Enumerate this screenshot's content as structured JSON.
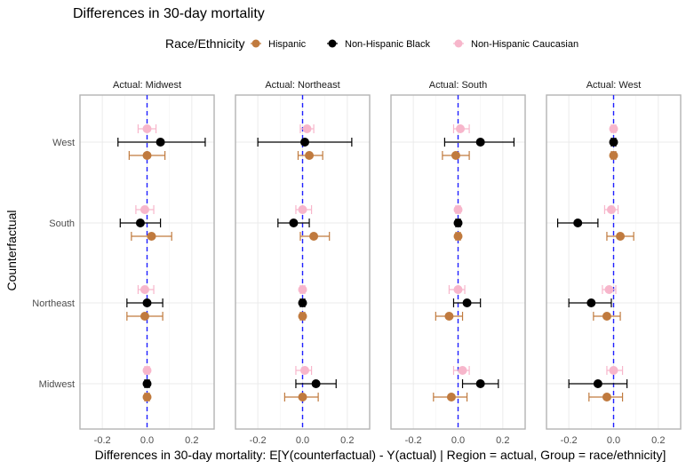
{
  "chart_data": {
    "type": "scatter",
    "title": "Differences in 30-day mortality",
    "xlabel": "Differences in 30-day mortality: E[Y(counterfactual) - Y(actual) | Region = actual, Group = race/ethnicity]",
    "ylabel": "Counterfactual",
    "legend_title": "Race/Ethnicity",
    "legend_position": "top",
    "xlim": [
      -0.3,
      0.3
    ],
    "x_ticks": [
      -0.2,
      0.0,
      0.2
    ],
    "x_tick_labels": [
      "-0.2",
      "0.0",
      "0.2"
    ],
    "reference_line": 0,
    "y_categories": [
      "West",
      "South",
      "Northeast",
      "Midwest"
    ],
    "groups": [
      {
        "name": "Hispanic",
        "color": "#C07A3E"
      },
      {
        "name": "Non-Hispanic Black",
        "color": "#000000"
      },
      {
        "name": "Non-Hispanic Caucasian",
        "color": "#F7B6CB"
      }
    ],
    "panels": [
      {
        "title": "Actual: Midwest",
        "points": [
          {
            "y": "West",
            "group": "Non-Hispanic Caucasian",
            "x": 0.0,
            "lo": -0.04,
            "hi": 0.04
          },
          {
            "y": "West",
            "group": "Non-Hispanic Black",
            "x": 0.06,
            "lo": -0.13,
            "hi": 0.26
          },
          {
            "y": "West",
            "group": "Hispanic",
            "x": 0.0,
            "lo": -0.08,
            "hi": 0.08
          },
          {
            "y": "South",
            "group": "Non-Hispanic Caucasian",
            "x": -0.01,
            "lo": -0.05,
            "hi": 0.03
          },
          {
            "y": "South",
            "group": "Non-Hispanic Black",
            "x": -0.03,
            "lo": -0.12,
            "hi": 0.06
          },
          {
            "y": "South",
            "group": "Hispanic",
            "x": 0.02,
            "lo": -0.07,
            "hi": 0.11
          },
          {
            "y": "Northeast",
            "group": "Non-Hispanic Caucasian",
            "x": -0.01,
            "lo": -0.04,
            "hi": 0.03
          },
          {
            "y": "Northeast",
            "group": "Non-Hispanic Black",
            "x": 0.0,
            "lo": -0.09,
            "hi": 0.07
          },
          {
            "y": "Northeast",
            "group": "Hispanic",
            "x": -0.01,
            "lo": -0.09,
            "hi": 0.07
          },
          {
            "y": "Midwest",
            "group": "Non-Hispanic Caucasian",
            "x": 0.0,
            "lo": -0.01,
            "hi": 0.01
          },
          {
            "y": "Midwest",
            "group": "Non-Hispanic Black",
            "x": 0.0,
            "lo": -0.01,
            "hi": 0.01
          },
          {
            "y": "Midwest",
            "group": "Hispanic",
            "x": 0.0,
            "lo": -0.01,
            "hi": 0.01
          }
        ]
      },
      {
        "title": "Actual: Northeast",
        "points": [
          {
            "y": "West",
            "group": "Non-Hispanic Caucasian",
            "x": 0.02,
            "lo": -0.01,
            "hi": 0.05
          },
          {
            "y": "West",
            "group": "Non-Hispanic Black",
            "x": 0.01,
            "lo": -0.2,
            "hi": 0.22
          },
          {
            "y": "West",
            "group": "Hispanic",
            "x": 0.03,
            "lo": -0.02,
            "hi": 0.09
          },
          {
            "y": "South",
            "group": "Non-Hispanic Caucasian",
            "x": 0.0,
            "lo": -0.03,
            "hi": 0.04
          },
          {
            "y": "South",
            "group": "Non-Hispanic Black",
            "x": -0.04,
            "lo": -0.11,
            "hi": 0.03
          },
          {
            "y": "South",
            "group": "Hispanic",
            "x": 0.05,
            "lo": -0.01,
            "hi": 0.12
          },
          {
            "y": "Northeast",
            "group": "Non-Hispanic Caucasian",
            "x": 0.0,
            "lo": -0.01,
            "hi": 0.01
          },
          {
            "y": "Northeast",
            "group": "Non-Hispanic Black",
            "x": 0.0,
            "lo": -0.01,
            "hi": 0.01
          },
          {
            "y": "Northeast",
            "group": "Hispanic",
            "x": 0.0,
            "lo": -0.01,
            "hi": 0.01
          },
          {
            "y": "Midwest",
            "group": "Non-Hispanic Caucasian",
            "x": 0.01,
            "lo": -0.03,
            "hi": 0.04
          },
          {
            "y": "Midwest",
            "group": "Non-Hispanic Black",
            "x": 0.06,
            "lo": -0.03,
            "hi": 0.15
          },
          {
            "y": "Midwest",
            "group": "Hispanic",
            "x": 0.0,
            "lo": -0.08,
            "hi": 0.07
          }
        ]
      },
      {
        "title": "Actual: South",
        "points": [
          {
            "y": "West",
            "group": "Non-Hispanic Caucasian",
            "x": 0.01,
            "lo": -0.02,
            "hi": 0.05
          },
          {
            "y": "West",
            "group": "Non-Hispanic Black",
            "x": 0.1,
            "lo": -0.06,
            "hi": 0.25
          },
          {
            "y": "West",
            "group": "Hispanic",
            "x": -0.01,
            "lo": -0.07,
            "hi": 0.05
          },
          {
            "y": "South",
            "group": "Non-Hispanic Caucasian",
            "x": 0.0,
            "lo": -0.01,
            "hi": 0.01
          },
          {
            "y": "South",
            "group": "Non-Hispanic Black",
            "x": 0.0,
            "lo": -0.01,
            "hi": 0.01
          },
          {
            "y": "South",
            "group": "Hispanic",
            "x": 0.0,
            "lo": -0.01,
            "hi": 0.01
          },
          {
            "y": "Northeast",
            "group": "Non-Hispanic Caucasian",
            "x": 0.0,
            "lo": -0.04,
            "hi": 0.03
          },
          {
            "y": "Northeast",
            "group": "Non-Hispanic Black",
            "x": 0.04,
            "lo": -0.02,
            "hi": 0.1
          },
          {
            "y": "Northeast",
            "group": "Hispanic",
            "x": -0.04,
            "lo": -0.1,
            "hi": 0.02
          },
          {
            "y": "Midwest",
            "group": "Non-Hispanic Caucasian",
            "x": 0.02,
            "lo": -0.02,
            "hi": 0.05
          },
          {
            "y": "Midwest",
            "group": "Non-Hispanic Black",
            "x": 0.1,
            "lo": 0.02,
            "hi": 0.18
          },
          {
            "y": "Midwest",
            "group": "Hispanic",
            "x": -0.03,
            "lo": -0.11,
            "hi": 0.04
          }
        ]
      },
      {
        "title": "Actual: West",
        "points": [
          {
            "y": "West",
            "group": "Non-Hispanic Caucasian",
            "x": 0.0,
            "lo": -0.01,
            "hi": 0.01
          },
          {
            "y": "West",
            "group": "Non-Hispanic Black",
            "x": 0.0,
            "lo": -0.01,
            "hi": 0.01
          },
          {
            "y": "West",
            "group": "Hispanic",
            "x": 0.0,
            "lo": -0.01,
            "hi": 0.01
          },
          {
            "y": "South",
            "group": "Non-Hispanic Caucasian",
            "x": -0.01,
            "lo": -0.04,
            "hi": 0.02
          },
          {
            "y": "South",
            "group": "Non-Hispanic Black",
            "x": -0.16,
            "lo": -0.25,
            "hi": -0.07
          },
          {
            "y": "South",
            "group": "Hispanic",
            "x": 0.03,
            "lo": -0.03,
            "hi": 0.09
          },
          {
            "y": "Northeast",
            "group": "Non-Hispanic Caucasian",
            "x": -0.02,
            "lo": -0.05,
            "hi": 0.01
          },
          {
            "y": "Northeast",
            "group": "Non-Hispanic Black",
            "x": -0.1,
            "lo": -0.2,
            "hi": -0.01
          },
          {
            "y": "Northeast",
            "group": "Hispanic",
            "x": -0.03,
            "lo": -0.09,
            "hi": 0.03
          },
          {
            "y": "Midwest",
            "group": "Non-Hispanic Caucasian",
            "x": 0.0,
            "lo": -0.03,
            "hi": 0.04
          },
          {
            "y": "Midwest",
            "group": "Non-Hispanic Black",
            "x": -0.07,
            "lo": -0.2,
            "hi": 0.06
          },
          {
            "y": "Midwest",
            "group": "Hispanic",
            "x": -0.03,
            "lo": -0.11,
            "hi": 0.04
          }
        ]
      }
    ]
  }
}
